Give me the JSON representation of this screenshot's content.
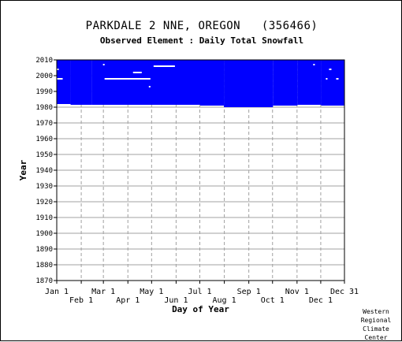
{
  "header": {
    "station_title": "PARKDALE 2 NNE, OREGON   (356466)",
    "element_title": "Observed Element : Daily Total Snowfall"
  },
  "credit": [
    "Western",
    "Regional",
    "Climate",
    "Center"
  ],
  "colors": {
    "data": "#0000ff",
    "grid": "#a0a0a0",
    "axis": "#000000"
  },
  "chart_data": {
    "type": "heatmap",
    "title": "Observed Element : Daily Total Snowfall",
    "xlabel": "Day of Year",
    "ylabel": "Year",
    "xlim": [
      1,
      365
    ],
    "ylim": [
      1870,
      2010
    ],
    "x_ticks_upper": [
      {
        "label": "Jan 1",
        "day": 1
      },
      {
        "label": "Mar 1",
        "day": 60
      },
      {
        "label": "May 1",
        "day": 121
      },
      {
        "label": "Jul 1",
        "day": 182
      },
      {
        "label": "Sep 1",
        "day": 244
      },
      {
        "label": "Nov 1",
        "day": 305
      },
      {
        "label": "Dec 31",
        "day": 365
      }
    ],
    "x_ticks_lower": [
      {
        "label": "Feb 1",
        "day": 32
      },
      {
        "label": "Apr 1",
        "day": 91
      },
      {
        "label": "Jun 1",
        "day": 152
      },
      {
        "label": "Aug 1",
        "day": 213
      },
      {
        "label": "Oct 1",
        "day": 274
      },
      {
        "label": "Dec 1",
        "day": 335
      }
    ],
    "y_ticks": [
      1870,
      1880,
      1890,
      1900,
      1910,
      1920,
      1930,
      1940,
      1950,
      1960,
      1970,
      1980,
      1990,
      2000,
      2010
    ],
    "grid": true,
    "data_extent_by_day": [
      {
        "from_day": 1,
        "to_day": 18,
        "start_year": 1982
      },
      {
        "from_day": 19,
        "to_day": 45,
        "start_year": 1981.5
      },
      {
        "from_day": 46,
        "to_day": 182,
        "start_year": 1981.5
      },
      {
        "from_day": 183,
        "to_day": 212,
        "start_year": 1981
      },
      {
        "from_day": 213,
        "to_day": 274,
        "start_year": 1980
      },
      {
        "from_day": 275,
        "to_day": 305,
        "start_year": 1981
      },
      {
        "from_day": 306,
        "to_day": 335,
        "start_year": 1981.5
      },
      {
        "from_day": 336,
        "to_day": 365,
        "start_year": 1981
      }
    ],
    "end_year": 2010,
    "missing_gaps": [
      {
        "from_day": 1,
        "to_day": 3,
        "year": 2004
      },
      {
        "from_day": 2,
        "to_day": 8,
        "year": 1998
      },
      {
        "from_day": 60,
        "to_day": 61,
        "year": 2007
      },
      {
        "from_day": 62,
        "to_day": 119,
        "year": 1998
      },
      {
        "from_day": 98,
        "to_day": 108,
        "year": 2002
      },
      {
        "from_day": 118,
        "to_day": 119,
        "year": 1993
      },
      {
        "from_day": 124,
        "to_day": 150,
        "year": 2006
      },
      {
        "from_day": 326,
        "to_day": 327,
        "year": 2007
      },
      {
        "from_day": 342,
        "to_day": 343,
        "year": 1998
      },
      {
        "from_day": 346,
        "to_day": 348,
        "year": 2004
      },
      {
        "from_day": 355,
        "to_day": 357,
        "year": 1998
      }
    ]
  }
}
